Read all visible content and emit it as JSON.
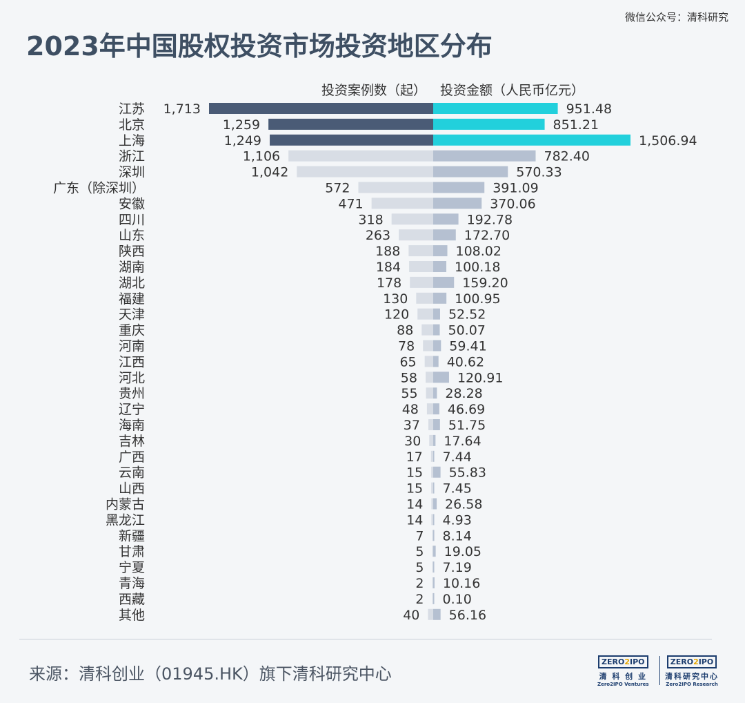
{
  "watermark": "微信公众号：清科研究",
  "title": "2023年中国股权投资市场投资地区分布",
  "source": "来源：清科创业（01945.HK）旗下清科研究中心",
  "logos": [
    {
      "box_a": "ZERO",
      "box_b": "2",
      "box_c": "IPO",
      "cn": "清 科 创 业",
      "en": "Zero2IPO Ventures"
    },
    {
      "box_a": "ZERO",
      "box_b": "2",
      "box_c": "IPO",
      "cn": "清科研究中心",
      "en": "Zero2IPO Research"
    }
  ],
  "colors": {
    "left_highlight": "#4a5b76",
    "left_normal": "#d8dde5",
    "right_highlight": "#22d0dc",
    "right_normal": "#b5c0d1",
    "text": "#333333"
  },
  "chart_data": {
    "type": "bar",
    "orientation": "horizontal-butterfly",
    "series": [
      {
        "name": "投资案例数（起）",
        "side": "left"
      },
      {
        "name": "投资金额（人民币亿元）",
        "side": "right"
      }
    ],
    "highlight_top_n": 3,
    "rows": [
      {
        "region": "江苏",
        "cases": 1713,
        "cases_label": "1,713",
        "amount": 951.48,
        "amount_label": "951.48"
      },
      {
        "region": "北京",
        "cases": 1259,
        "cases_label": "1,259",
        "amount": 851.21,
        "amount_label": "851.21"
      },
      {
        "region": "上海",
        "cases": 1249,
        "cases_label": "1,249",
        "amount": 1506.94,
        "amount_label": "1,506.94"
      },
      {
        "region": "浙江",
        "cases": 1106,
        "cases_label": "1,106",
        "amount": 782.4,
        "amount_label": "782.40"
      },
      {
        "region": "深圳",
        "cases": 1042,
        "cases_label": "1,042",
        "amount": 570.33,
        "amount_label": "570.33"
      },
      {
        "region": "广东（除深圳）",
        "cases": 572,
        "cases_label": "572",
        "amount": 391.09,
        "amount_label": "391.09"
      },
      {
        "region": "安徽",
        "cases": 471,
        "cases_label": "471",
        "amount": 370.06,
        "amount_label": "370.06"
      },
      {
        "region": "四川",
        "cases": 318,
        "cases_label": "318",
        "amount": 192.78,
        "amount_label": "192.78"
      },
      {
        "region": "山东",
        "cases": 263,
        "cases_label": "263",
        "amount": 172.7,
        "amount_label": "172.70"
      },
      {
        "region": "陕西",
        "cases": 188,
        "cases_label": "188",
        "amount": 108.02,
        "amount_label": "108.02"
      },
      {
        "region": "湖南",
        "cases": 184,
        "cases_label": "184",
        "amount": 100.18,
        "amount_label": "100.18"
      },
      {
        "region": "湖北",
        "cases": 178,
        "cases_label": "178",
        "amount": 159.2,
        "amount_label": "159.20"
      },
      {
        "region": "福建",
        "cases": 130,
        "cases_label": "130",
        "amount": 100.95,
        "amount_label": "100.95"
      },
      {
        "region": "天津",
        "cases": 120,
        "cases_label": "120",
        "amount": 52.52,
        "amount_label": "52.52"
      },
      {
        "region": "重庆",
        "cases": 88,
        "cases_label": "88",
        "amount": 50.07,
        "amount_label": "50.07"
      },
      {
        "region": "河南",
        "cases": 78,
        "cases_label": "78",
        "amount": 59.41,
        "amount_label": "59.41"
      },
      {
        "region": "江西",
        "cases": 65,
        "cases_label": "65",
        "amount": 40.62,
        "amount_label": "40.62"
      },
      {
        "region": "河北",
        "cases": 58,
        "cases_label": "58",
        "amount": 120.91,
        "amount_label": "120.91"
      },
      {
        "region": "贵州",
        "cases": 55,
        "cases_label": "55",
        "amount": 28.28,
        "amount_label": "28.28"
      },
      {
        "region": "辽宁",
        "cases": 48,
        "cases_label": "48",
        "amount": 46.69,
        "amount_label": "46.69"
      },
      {
        "region": "海南",
        "cases": 37,
        "cases_label": "37",
        "amount": 51.75,
        "amount_label": "51.75"
      },
      {
        "region": "吉林",
        "cases": 30,
        "cases_label": "30",
        "amount": 17.64,
        "amount_label": "17.64"
      },
      {
        "region": "广西",
        "cases": 17,
        "cases_label": "17",
        "amount": 7.44,
        "amount_label": "7.44"
      },
      {
        "region": "云南",
        "cases": 15,
        "cases_label": "15",
        "amount": 55.83,
        "amount_label": "55.83"
      },
      {
        "region": "山西",
        "cases": 15,
        "cases_label": "15",
        "amount": 7.45,
        "amount_label": "7.45"
      },
      {
        "region": "内蒙古",
        "cases": 14,
        "cases_label": "14",
        "amount": 26.58,
        "amount_label": "26.58"
      },
      {
        "region": "黑龙江",
        "cases": 14,
        "cases_label": "14",
        "amount": 4.93,
        "amount_label": "4.93"
      },
      {
        "region": "新疆",
        "cases": 7,
        "cases_label": "7",
        "amount": 8.14,
        "amount_label": "8.14"
      },
      {
        "region": "甘肃",
        "cases": 5,
        "cases_label": "5",
        "amount": 19.05,
        "amount_label": "19.05"
      },
      {
        "region": "宁夏",
        "cases": 5,
        "cases_label": "5",
        "amount": 7.19,
        "amount_label": "7.19"
      },
      {
        "region": "青海",
        "cases": 2,
        "cases_label": "2",
        "amount": 10.16,
        "amount_label": "10.16"
      },
      {
        "region": "西藏",
        "cases": 2,
        "cases_label": "2",
        "amount": 0.1,
        "amount_label": "0.10"
      },
      {
        "region": "其他",
        "cases": 40,
        "cases_label": "40",
        "amount": 56.16,
        "amount_label": "56.16"
      }
    ]
  }
}
